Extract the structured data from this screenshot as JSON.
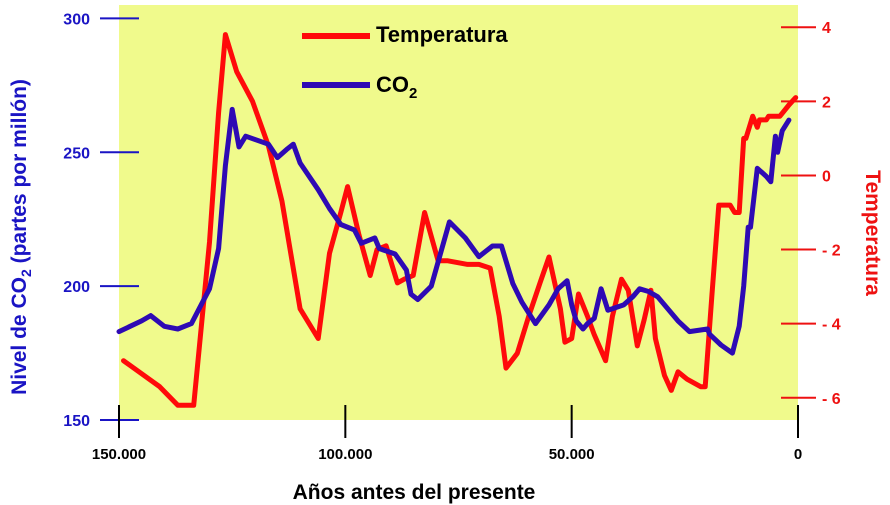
{
  "chart_data": {
    "type": "line",
    "title": "",
    "xlabel": "Años antes del presente",
    "ylabel_left_prefix": "Nivel de CO",
    "ylabel_left_sub": "2",
    "ylabel_left_suffix": " (partes por millón)",
    "ylabel_right": "Temperatura",
    "xlim": [
      150000,
      0
    ],
    "ylim_left": [
      150,
      305
    ],
    "ylim_right": [
      -6.6,
      4.6
    ],
    "x_ticks": [
      {
        "value": 150000,
        "label": "150.000"
      },
      {
        "value": 100000,
        "label": "100.000"
      },
      {
        "value": 50000,
        "label": "50.000"
      },
      {
        "value": 0,
        "label": "0"
      }
    ],
    "y_left_ticks": [
      {
        "value": 300,
        "label": "300"
      },
      {
        "value": 250,
        "label": "250"
      },
      {
        "value": 200,
        "label": "200"
      },
      {
        "value": 150,
        "label": "150"
      }
    ],
    "y_right_ticks": [
      {
        "value": 4,
        "label": "4"
      },
      {
        "value": 2,
        "label": "2"
      },
      {
        "value": 0,
        "label": "0"
      },
      {
        "value": -2,
        "label": "- 2"
      },
      {
        "value": -4,
        "label": "- 4"
      },
      {
        "value": -6,
        "label": "- 6"
      }
    ],
    "legend_position": "top-center",
    "grid": false,
    "plot_background": "#f0fa8c",
    "series": [
      {
        "name": "Temperatura",
        "axis": "right",
        "color": "#ff0a0a",
        "x": [
          149000,
          141000,
          137000,
          133500,
          130000,
          128000,
          126500,
          124000,
          120500,
          117000,
          114000,
          110000,
          106000,
          103500,
          101000,
          99500,
          97000,
          94500,
          93000,
          91000,
          88500,
          87000,
          85000,
          82500,
          79500,
          77500,
          73000,
          70500,
          68000,
          66000,
          64500,
          62000,
          59500,
          57000,
          55000,
          52500,
          51500,
          50000,
          48500,
          46500,
          45000,
          42500,
          41000,
          39000,
          37500,
          35500,
          34000,
          32500,
          31500,
          29500,
          28000,
          26500,
          24500,
          21500,
          20500,
          19000,
          17500,
          15000,
          14000,
          13000,
          12000,
          11500,
          10000,
          9000,
          8500,
          7000,
          6500,
          5500,
          4000,
          2000,
          500
        ],
        "values": [
          -5.0,
          -5.7,
          -6.2,
          -6.2,
          -1.8,
          1.7,
          3.8,
          2.8,
          2.0,
          0.8,
          -0.7,
          -3.6,
          -4.4,
          -2.1,
          -1.0,
          -0.3,
          -1.6,
          -2.7,
          -2.0,
          -1.9,
          -2.9,
          -2.8,
          -2.7,
          -1.0,
          -2.3,
          -2.3,
          -2.4,
          -2.4,
          -2.5,
          -3.8,
          -5.2,
          -4.8,
          -3.8,
          -2.9,
          -2.2,
          -3.6,
          -4.5,
          -4.4,
          -3.2,
          -3.8,
          -4.3,
          -5.0,
          -3.8,
          -2.8,
          -3.1,
          -4.6,
          -3.9,
          -3.1,
          -4.4,
          -5.4,
          -5.8,
          -5.3,
          -5.5,
          -5.7,
          -5.7,
          -3.2,
          -0.8,
          -0.8,
          -1.0,
          -1.0,
          1.0,
          1.0,
          1.6,
          1.3,
          1.5,
          1.5,
          1.6,
          1.6,
          1.6,
          1.9,
          2.1
        ]
      },
      {
        "name": "CO₂",
        "legend_prefix": "CO",
        "legend_sub": "2",
        "axis": "left",
        "color": "#2e0ab4",
        "x": [
          150000,
          145000,
          143000,
          140000,
          137000,
          134000,
          130000,
          128000,
          126500,
          125000,
          123500,
          122000,
          117000,
          115000,
          113000,
          111500,
          110000,
          106000,
          103500,
          101000,
          98000,
          96500,
          93500,
          92500,
          89000,
          86500,
          85500,
          84000,
          81000,
          77000,
          73500,
          70500,
          69000,
          67500,
          65500,
          63000,
          61000,
          58000,
          55000,
          53000,
          51000,
          50000,
          49000,
          47500,
          46500,
          45000,
          43500,
          42000,
          38500,
          36500,
          35000,
          33000,
          31000,
          26500,
          24000,
          20000,
          19500,
          17000,
          14500,
          13000,
          12000,
          11000,
          10500,
          9000,
          7000,
          6000,
          5000,
          4500,
          3500,
          2000
        ],
        "values": [
          183,
          187,
          189,
          185,
          184,
          186,
          199,
          214,
          245,
          266,
          252,
          256,
          253,
          248,
          251,
          253,
          246,
          236,
          229,
          223,
          221,
          216,
          218,
          214,
          212,
          206,
          197,
          195,
          200,
          224,
          218,
          211,
          213,
          215,
          215,
          201,
          194,
          186,
          193,
          199,
          202,
          193,
          187,
          184,
          186,
          188,
          199,
          191,
          193,
          196,
          199,
          198,
          196,
          187,
          183,
          184,
          182,
          178,
          175,
          185,
          200,
          222,
          222,
          244,
          241,
          239,
          256,
          250,
          258,
          262
        ]
      }
    ]
  }
}
